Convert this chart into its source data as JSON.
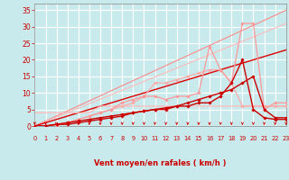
{
  "bg_color": "#c8eaec",
  "grid_color": "#ffffff",
  "xlabel": "Vent moyen/en rafales ( km/h )",
  "ylim": [
    0,
    37
  ],
  "xlim": [
    0,
    23
  ],
  "yticks": [
    0,
    5,
    10,
    15,
    20,
    25,
    30,
    35
  ],
  "xtick_labels": [
    "0",
    "1",
    "2",
    "3",
    "4",
    "5",
    "6",
    "7",
    "8",
    "9",
    "10",
    "11",
    "12",
    "13",
    "14",
    "15",
    "16",
    "17",
    "18",
    "19",
    "20",
    "21",
    "22",
    "23"
  ],
  "lines": [
    {
      "x": [
        0,
        23
      ],
      "y": [
        0,
        35
      ],
      "color": "#ff8888",
      "lw": 0.8,
      "marker": null,
      "zo": 1
    },
    {
      "x": [
        0,
        23
      ],
      "y": [
        0,
        31
      ],
      "color": "#ffbbbb",
      "lw": 0.8,
      "marker": null,
      "zo": 1
    },
    {
      "x": [
        0,
        23
      ],
      "y": [
        0,
        23
      ],
      "color": "#dd0000",
      "lw": 1.0,
      "marker": null,
      "zo": 1
    },
    {
      "x": [
        0,
        1,
        2,
        3,
        4,
        5,
        6,
        7,
        8,
        9,
        10,
        11,
        12,
        13,
        14,
        15,
        16,
        17,
        18,
        19,
        20,
        21,
        22,
        23
      ],
      "y": [
        4,
        4,
        4,
        4,
        4,
        4,
        6,
        6,
        6,
        6,
        6,
        6,
        6,
        6,
        6,
        6,
        6,
        6,
        6,
        6,
        6,
        6,
        6,
        6
      ],
      "color": "#ffbbbb",
      "lw": 0.9,
      "marker": null,
      "zo": 2
    },
    {
      "x": [
        0,
        1,
        2,
        3,
        4,
        5,
        6,
        7,
        8,
        9,
        10,
        11,
        12,
        13,
        14,
        15,
        16,
        17,
        18,
        19,
        20,
        21,
        22,
        23
      ],
      "y": [
        0,
        0,
        0,
        1,
        2,
        3,
        4,
        5,
        6,
        7,
        9,
        13,
        13,
        14,
        15,
        16,
        17,
        17,
        13,
        6,
        6,
        6,
        6,
        6
      ],
      "color": "#ffaaaa",
      "lw": 0.9,
      "marker": "D",
      "ms": 1.8,
      "zo": 3
    },
    {
      "x": [
        0,
        1,
        2,
        3,
        4,
        5,
        6,
        7,
        8,
        9,
        10,
        11,
        12,
        13,
        14,
        15,
        16,
        17,
        18,
        19,
        20,
        21,
        22,
        23
      ],
      "y": [
        0,
        0,
        0.5,
        1,
        2,
        3,
        4,
        5,
        7,
        8,
        9,
        9,
        8,
        9,
        9,
        10,
        24,
        17,
        13,
        31,
        31,
        5,
        7,
        7
      ],
      "color": "#ff9999",
      "lw": 0.9,
      "marker": "D",
      "ms": 1.8,
      "zo": 3
    },
    {
      "x": [
        0,
        1,
        2,
        3,
        4,
        5,
        6,
        7,
        8,
        9,
        10,
        11,
        12,
        13,
        14,
        15,
        16,
        17,
        18,
        19,
        20,
        21,
        22,
        23
      ],
      "y": [
        0,
        0,
        0.5,
        1,
        1.5,
        2,
        2.5,
        3,
        3.5,
        4,
        4.5,
        5,
        5.5,
        6,
        7,
        8,
        9,
        10,
        11,
        13,
        15,
        5,
        2.5,
        2.5
      ],
      "color": "#cc0000",
      "lw": 1.0,
      "marker": "D",
      "ms": 1.8,
      "zo": 4
    },
    {
      "x": [
        0,
        1,
        2,
        3,
        4,
        5,
        6,
        7,
        8,
        9,
        10,
        11,
        12,
        13,
        14,
        15,
        16,
        17,
        18,
        19,
        20,
        21,
        22,
        23
      ],
      "y": [
        0,
        0,
        0.5,
        0.5,
        1,
        1.5,
        2,
        2.5,
        3,
        4,
        4.5,
        5,
        5,
        6,
        6,
        7,
        7,
        9,
        13,
        20,
        5,
        2.5,
        2,
        2
      ],
      "color": "#cc0000",
      "lw": 1.0,
      "marker": "D",
      "ms": 1.8,
      "zo": 4
    }
  ],
  "tick_color": "#cc0000",
  "label_color": "#cc0000",
  "arrow_color": "#cc0000"
}
